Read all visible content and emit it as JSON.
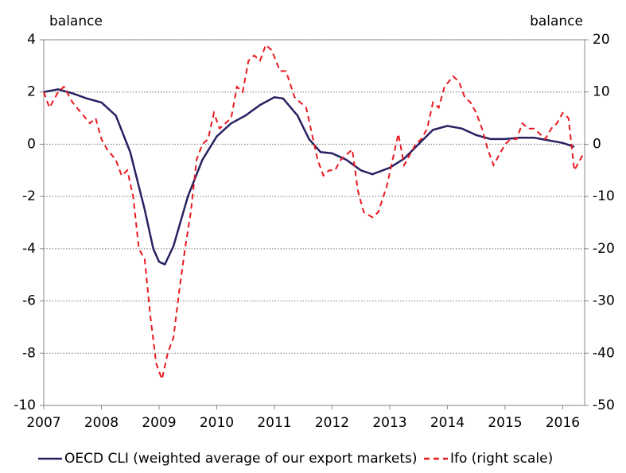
{
  "chart_data": {
    "type": "line",
    "y_label": "balance",
    "y2_label": "balance",
    "xlim": [
      2007,
      2016.38
    ],
    "xticks": [
      2007,
      2008,
      2009,
      2010,
      2011,
      2012,
      2013,
      2014,
      2015,
      2016
    ],
    "ylim": [
      -10,
      4
    ],
    "yticks": [
      -10,
      -8,
      -6,
      -4,
      -2,
      0,
      2,
      4
    ],
    "y2lim": [
      -50,
      20
    ],
    "y2ticks": [
      -50,
      -40,
      -30,
      -20,
      -10,
      0,
      10,
      20
    ],
    "grid": true,
    "series": [
      {
        "name": "OECD CLI (weighted average of our export markets)",
        "color": "#262262",
        "dash": false,
        "axis": "y",
        "x": [
          2007.0,
          2007.25,
          2007.5,
          2007.75,
          2008.0,
          2008.25,
          2008.5,
          2008.75,
          2008.9,
          2009.0,
          2009.1,
          2009.25,
          2009.5,
          2009.75,
          2010.0,
          2010.25,
          2010.5,
          2010.75,
          2011.0,
          2011.15,
          2011.4,
          2011.6,
          2011.8,
          2012.0,
          2012.25,
          2012.5,
          2012.7,
          2013.0,
          2013.25,
          2013.5,
          2013.75,
          2014.0,
          2014.25,
          2014.5,
          2014.75,
          2015.0,
          2015.25,
          2015.5,
          2015.75,
          2016.0,
          2016.2
        ],
        "values": [
          2.0,
          2.1,
          1.95,
          1.75,
          1.6,
          1.1,
          -0.3,
          -2.5,
          -4.0,
          -4.5,
          -4.6,
          -3.9,
          -2.0,
          -0.6,
          0.3,
          0.8,
          1.1,
          1.5,
          1.8,
          1.75,
          1.1,
          0.2,
          -0.3,
          -0.35,
          -0.6,
          -1.0,
          -1.15,
          -0.9,
          -0.55,
          0.0,
          0.55,
          0.7,
          0.6,
          0.35,
          0.2,
          0.2,
          0.25,
          0.25,
          0.15,
          0.05,
          -0.1
        ]
      },
      {
        "name": "Ifo (right scale)",
        "color": "#e8191f",
        "dash": true,
        "axis": "y2",
        "x": [
          2007.0,
          2007.1,
          2007.25,
          2007.35,
          2007.5,
          2007.65,
          2007.8,
          2007.9,
          2008.0,
          2008.1,
          2008.25,
          2008.35,
          2008.45,
          2008.55,
          2008.65,
          2008.75,
          2008.85,
          2008.95,
          2009.05,
          2009.15,
          2009.25,
          2009.35,
          2009.45,
          2009.55,
          2009.65,
          2009.75,
          2009.85,
          2009.95,
          2010.05,
          2010.15,
          2010.25,
          2010.35,
          2010.45,
          2010.55,
          2010.65,
          2010.75,
          2010.85,
          2010.95,
          2011.1,
          2011.2,
          2011.35,
          2011.45,
          2011.55,
          2011.65,
          2011.75,
          2011.85,
          2011.95,
          2012.05,
          2012.15,
          2012.25,
          2012.35,
          2012.45,
          2012.55,
          2012.7,
          2012.8,
          2012.95,
          2013.05,
          2013.15,
          2013.25,
          2013.35,
          2013.45,
          2013.55,
          2013.65,
          2013.75,
          2013.85,
          2013.95,
          2014.1,
          2014.2,
          2014.3,
          2014.4,
          2014.5,
          2014.6,
          2014.7,
          2014.8,
          2014.9,
          2015.0,
          2015.1,
          2015.2,
          2015.3,
          2015.4,
          2015.5,
          2015.6,
          2015.7,
          2015.8,
          2015.9,
          2016.0,
          2016.1,
          2016.2,
          2016.3,
          2016.35
        ],
        "values": [
          10,
          7,
          10,
          11,
          8,
          6,
          4,
          5,
          1,
          -1,
          -3,
          -6,
          -5,
          -10,
          -20,
          -22,
          -33,
          -42,
          -45,
          -40,
          -37,
          -28,
          -20,
          -13,
          -3,
          0,
          1,
          6,
          3,
          4,
          5,
          11,
          10,
          16,
          17,
          16,
          19,
          18,
          14,
          14,
          9,
          8,
          7,
          2,
          -3,
          -6,
          -5,
          -5,
          -3,
          -2,
          -1,
          -9,
          -13,
          -14,
          -13,
          -8,
          -3,
          2,
          -4,
          -2,
          0,
          1,
          3,
          8,
          7,
          11,
          13,
          12,
          9,
          8,
          6,
          3,
          -1,
          -4,
          -2,
          0,
          1,
          1,
          4,
          3,
          3,
          2,
          1,
          3,
          4,
          6,
          5,
          -5,
          -3,
          -2
        ]
      }
    ]
  }
}
